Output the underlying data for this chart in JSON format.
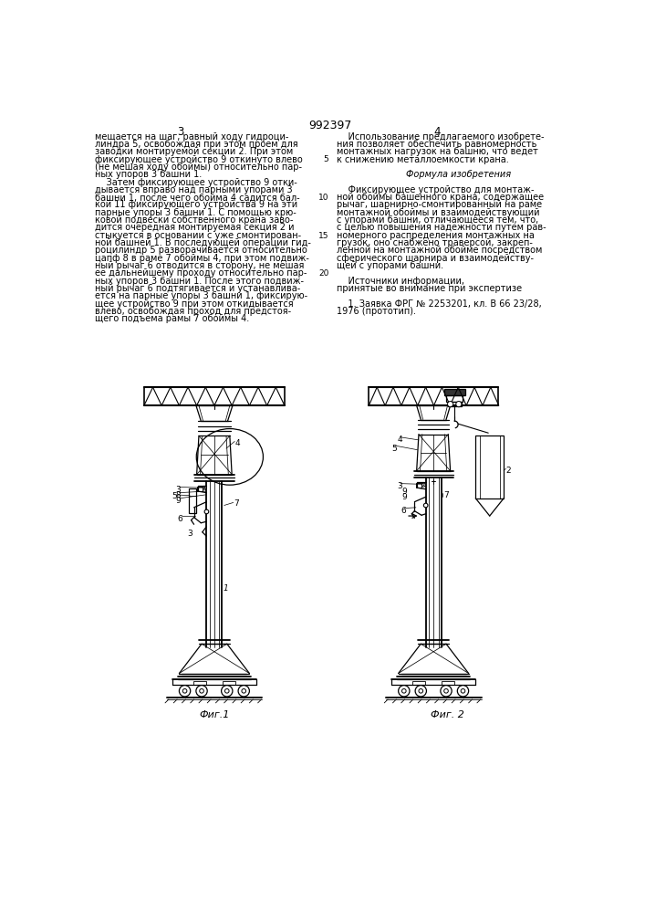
{
  "patent_number": "992397",
  "col_left_header": "3",
  "col_right_header": "4",
  "col_left_text": [
    "мещается на шаг, равный ходу гидроци-",
    "линдра 5, освобождая при этом проем для",
    "заводки монтируемой секции 2. При этом",
    "фиксирующее устройство 9 откинуто влево",
    "(не мешая ходу обоймы) относительно пар-",
    "ных упоров 3 башни 1.",
    "    Затем фиксирующее устройство 9 отки-",
    "дывается вправо над парными упорами 3",
    "башни 1, после чего обойма 4 садится бал-",
    "кой 11 фиксирующего устройства 9 на эти",
    "парные упоры 3 башни 1. С помощью крю-",
    "ковой подвески собственного крана заво-",
    "дится очередная монтируемая секция 2 и",
    "стыкуется в основании с уже смонтирован-",
    "ной башней 1. В последующей операции гид-",
    "роцилиндр 5 разворачивается относительно",
    "цапф 8 в раме 7 обоймы 4, при этом подвиж-",
    "ный рычаг 6 отводится в сторону, не мешая",
    "ее дальнейшему проходу относительно пар-",
    "ных упоров 3 башни 1. После этого подвиж-",
    "ный рычаг 6 подтягивается и устанавлива-",
    "ется на парные упоры 3 башни 1, фиксирую-",
    "щее устройство 9 при этом откидывается",
    "влево, освобождая проход для предстоя-",
    "щего подъема рамы 7 обоймы 4."
  ],
  "col_right_text_1": "    Использование предлагаемого изобрете-",
  "col_right_text": [
    "    Использование предлагаемого изобрете-",
    "ния позволяет обеспечить равномерность",
    "монтажных нагрузок на башню, что ведет",
    "к снижению металлоемкости крана.",
    "",
    "Формула изобретения",
    "",
    "    Фиксирующее устройство для монтаж-",
    "ной обоймы башенного крана, содержащее",
    "рычаг, шарнирно-смонтированный на раме",
    "монтажной обоймы и взаимодействующий",
    "с упорами башни, отличающееся тем, что,",
    "с целью повышения надежности путем рав-",
    "номерного распределения монтажных на",
    "грузок, оно снабжено траверсой, закреп-",
    "ленной на монтажной обойме посредством",
    "сферического шарнира и взаимодейству-",
    "щей с упорами башни.",
    "",
    "    Источники информации,",
    "принятые во внимание при экспертизе",
    "",
    "    1. Заявка ФРГ № 2253201, кл. В 66 23/28,",
    "1976 (прототип)."
  ],
  "fig1_caption": "Фиг.1",
  "fig2_caption": "Фиг. 2",
  "formula_italic": "Формула изобретения"
}
